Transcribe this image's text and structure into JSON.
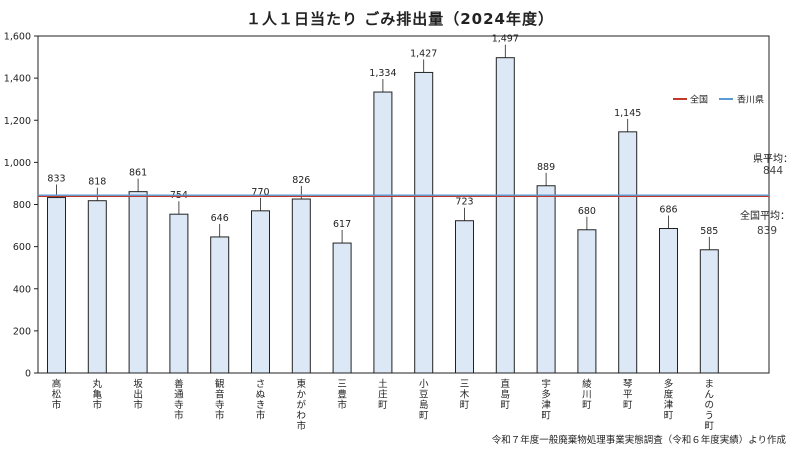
{
  "chart_data": {
    "type": "bar",
    "title": "１人１日当たり ごみ排出量（2024年度）",
    "categories": [
      "高松市",
      "丸亀市",
      "坂出市",
      "善通寺市",
      "観音寺市",
      "さぬき市",
      "東かがわ市",
      "三豊市",
      "土庄町",
      "小豆島町",
      "三木町",
      "直島町",
      "宇多津町",
      "綾川町",
      "琴平町",
      "多度津町",
      "まんのう町"
    ],
    "values": [
      833,
      818,
      861,
      754,
      646,
      770,
      826,
      617,
      1334,
      1427,
      723,
      1497,
      889,
      680,
      1145,
      686,
      585
    ],
    "value_labels": [
      "833",
      "818",
      "861",
      "754",
      "646",
      "770",
      "826",
      "617",
      "1,334",
      "1,427",
      "723",
      "1,497",
      "889",
      "680",
      "1,145",
      "686",
      "585"
    ],
    "ylim": [
      0,
      1600
    ],
    "yticks": [
      0,
      200,
      400,
      600,
      800,
      1000,
      1200,
      1400,
      1600
    ],
    "ytick_labels": [
      "0",
      "200",
      "400",
      "600",
      "800",
      "1,000",
      "1,200",
      "1,400",
      "1,600"
    ],
    "reference_lines": [
      {
        "name": "全国",
        "value": 839,
        "color": "#c0392b",
        "label": "全国平均：",
        "value_label": "839"
      },
      {
        "name": "香川県",
        "value": 844,
        "color": "#5b9bd5",
        "label": "県平均：",
        "value_label": "844"
      }
    ],
    "legend": {
      "position": "top-right",
      "items": [
        "全国",
        "香川県"
      ]
    },
    "bar_color": "#dce8f5",
    "bar_stroke": "#222222",
    "grid": false
  },
  "source": "令和７年度一般廃棄物処理事業実態調査（令和６年度実績）より作成"
}
